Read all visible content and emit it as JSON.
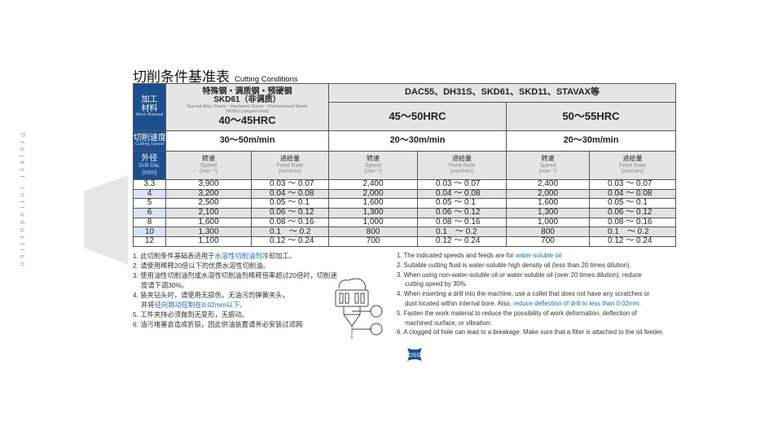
{
  "side_label": "Project introduction",
  "title": {
    "cn": "切削条件基准表",
    "en": "Cutting Conditions"
  },
  "table": {
    "work_material": {
      "cn1": "加工",
      "cn2": "材料",
      "en": "Work Material"
    },
    "cutting_speed_label": {
      "cn": "切削速度",
      "en": "Cutting Speed"
    },
    "drill_dia": {
      "cn": "外径",
      "en1": "Drill Dia.",
      "en2": "(mm)"
    },
    "material1": {
      "cn1": "特殊钢・调质钢・预硬钢",
      "cn2": "SKD61（非调质）",
      "en1": "Special Alloy Steels・Hardened Steels・Prehardened Steels",
      "en2": "SKD61 (unquenched)",
      "hrc": "40～45HRC",
      "speed": "30～50m/min"
    },
    "material2": {
      "name": "DAC55、DH31S、SKD61、SKD11、STAVAX等",
      "groups": [
        {
          "hrc": "45～50HRC",
          "speed": "20～30m/min"
        },
        {
          "hrc": "50～55HRC",
          "speed": "20～30m/min"
        }
      ]
    },
    "sub": {
      "speed_cn": "转速",
      "speed_en": "Speed",
      "speed_unit": "(min⁻¹)",
      "feed_cn": "进给量",
      "feed_en": "Feed Rate",
      "feed_unit": "(mm/rev)"
    },
    "rows": [
      [
        "3.3",
        "3,900",
        "0.03 ～ 0.07",
        "2,400",
        "0.03 ～ 0.07",
        "2,400",
        "0.03 ～ 0.07"
      ],
      [
        "4",
        "3,200",
        "0.04 ～ 0.08",
        "2,000",
        "0.04 ～ 0.08",
        "2,000",
        "0.04 ～ 0.08"
      ],
      [
        "5",
        "2,500",
        "0.05 ～ 0.1",
        "1,600",
        "0.05 ～ 0.1",
        "1,600",
        "0.05 ～ 0.1"
      ],
      [
        "6",
        "2,100",
        "0.06 ～ 0.12",
        "1,300",
        "0.06 ～ 0.12",
        "1,300",
        "0.06 ～ 0.12"
      ],
      [
        "8",
        "1,600",
        "0.08 ～ 0.16",
        "1,000",
        "0.08 ～ 0.16",
        "1,000",
        "0.08 ～ 0.16"
      ],
      [
        "10",
        "1,300",
        "0.1　～ 0.2",
        "800",
        "0.1　～ 0.2",
        "800",
        "0.1　～ 0.2"
      ],
      [
        "12",
        "1,100",
        "0.12 ～ 0.24",
        "700",
        "0.12 ～ 0.24",
        "700",
        "0.12 ～ 0.24"
      ]
    ]
  },
  "notes_cn": {
    "n1a": "1. 此切削条件基础表适用于",
    "n1b": "水溶性切削油剂",
    "n1c": "冷却加工。",
    "n2": "2. 请使用稀释20倍以下的优质水溶性切削油。",
    "n3a": "3. 使用油性切削油剂或水溶性切削油剂稀释倍率超过20倍时，切削速",
    "n3b": "度请下调30%。",
    "n4a": "4. 装夹钻头时，请使用无损伤，无油污的弹簧夹头，",
    "n4b": "并将",
    "n4c": "径向跳动控制在0.02mm以下。",
    "n5": "5. 工件夹持必须做到无变形，无振动。",
    "n6": "6. 油污堵塞会造成折损，因此供油装置请务必安装过滤网"
  },
  "notes_en": {
    "n1a": "1. The indicated speeds and feeds are for ",
    "n1b": "water-soluble oil",
    "n2": "2. Suitable cutting fluid is water-soluble high density oil (less than 20 times dilution).",
    "n3a": "3. When using non-water-soluble oil or water-soluble oil (over 20 times dilution), reduce",
    "n3b": "cutting speed by 30%.",
    "n4a": "4. When inserting a drill into the machine, use a collet that does not have any scratches or",
    "n4b": "dust located within internal bore. Also, ",
    "n4c": "reduce deflection of drill to less than 0.02mm.",
    "n5a": "5. Fasten the work material to reduce the possibility of work deformation, deflection of",
    "n5b": "machined surface, or vibration.",
    "n6": "6. A clogged oil hole can lead to a breakage. Make sure that a filter is attached to the oil feeder."
  },
  "logo": "OSG",
  "colors": {
    "header_blue": "#1d4f8e",
    "highlight": "#2a67b3"
  }
}
